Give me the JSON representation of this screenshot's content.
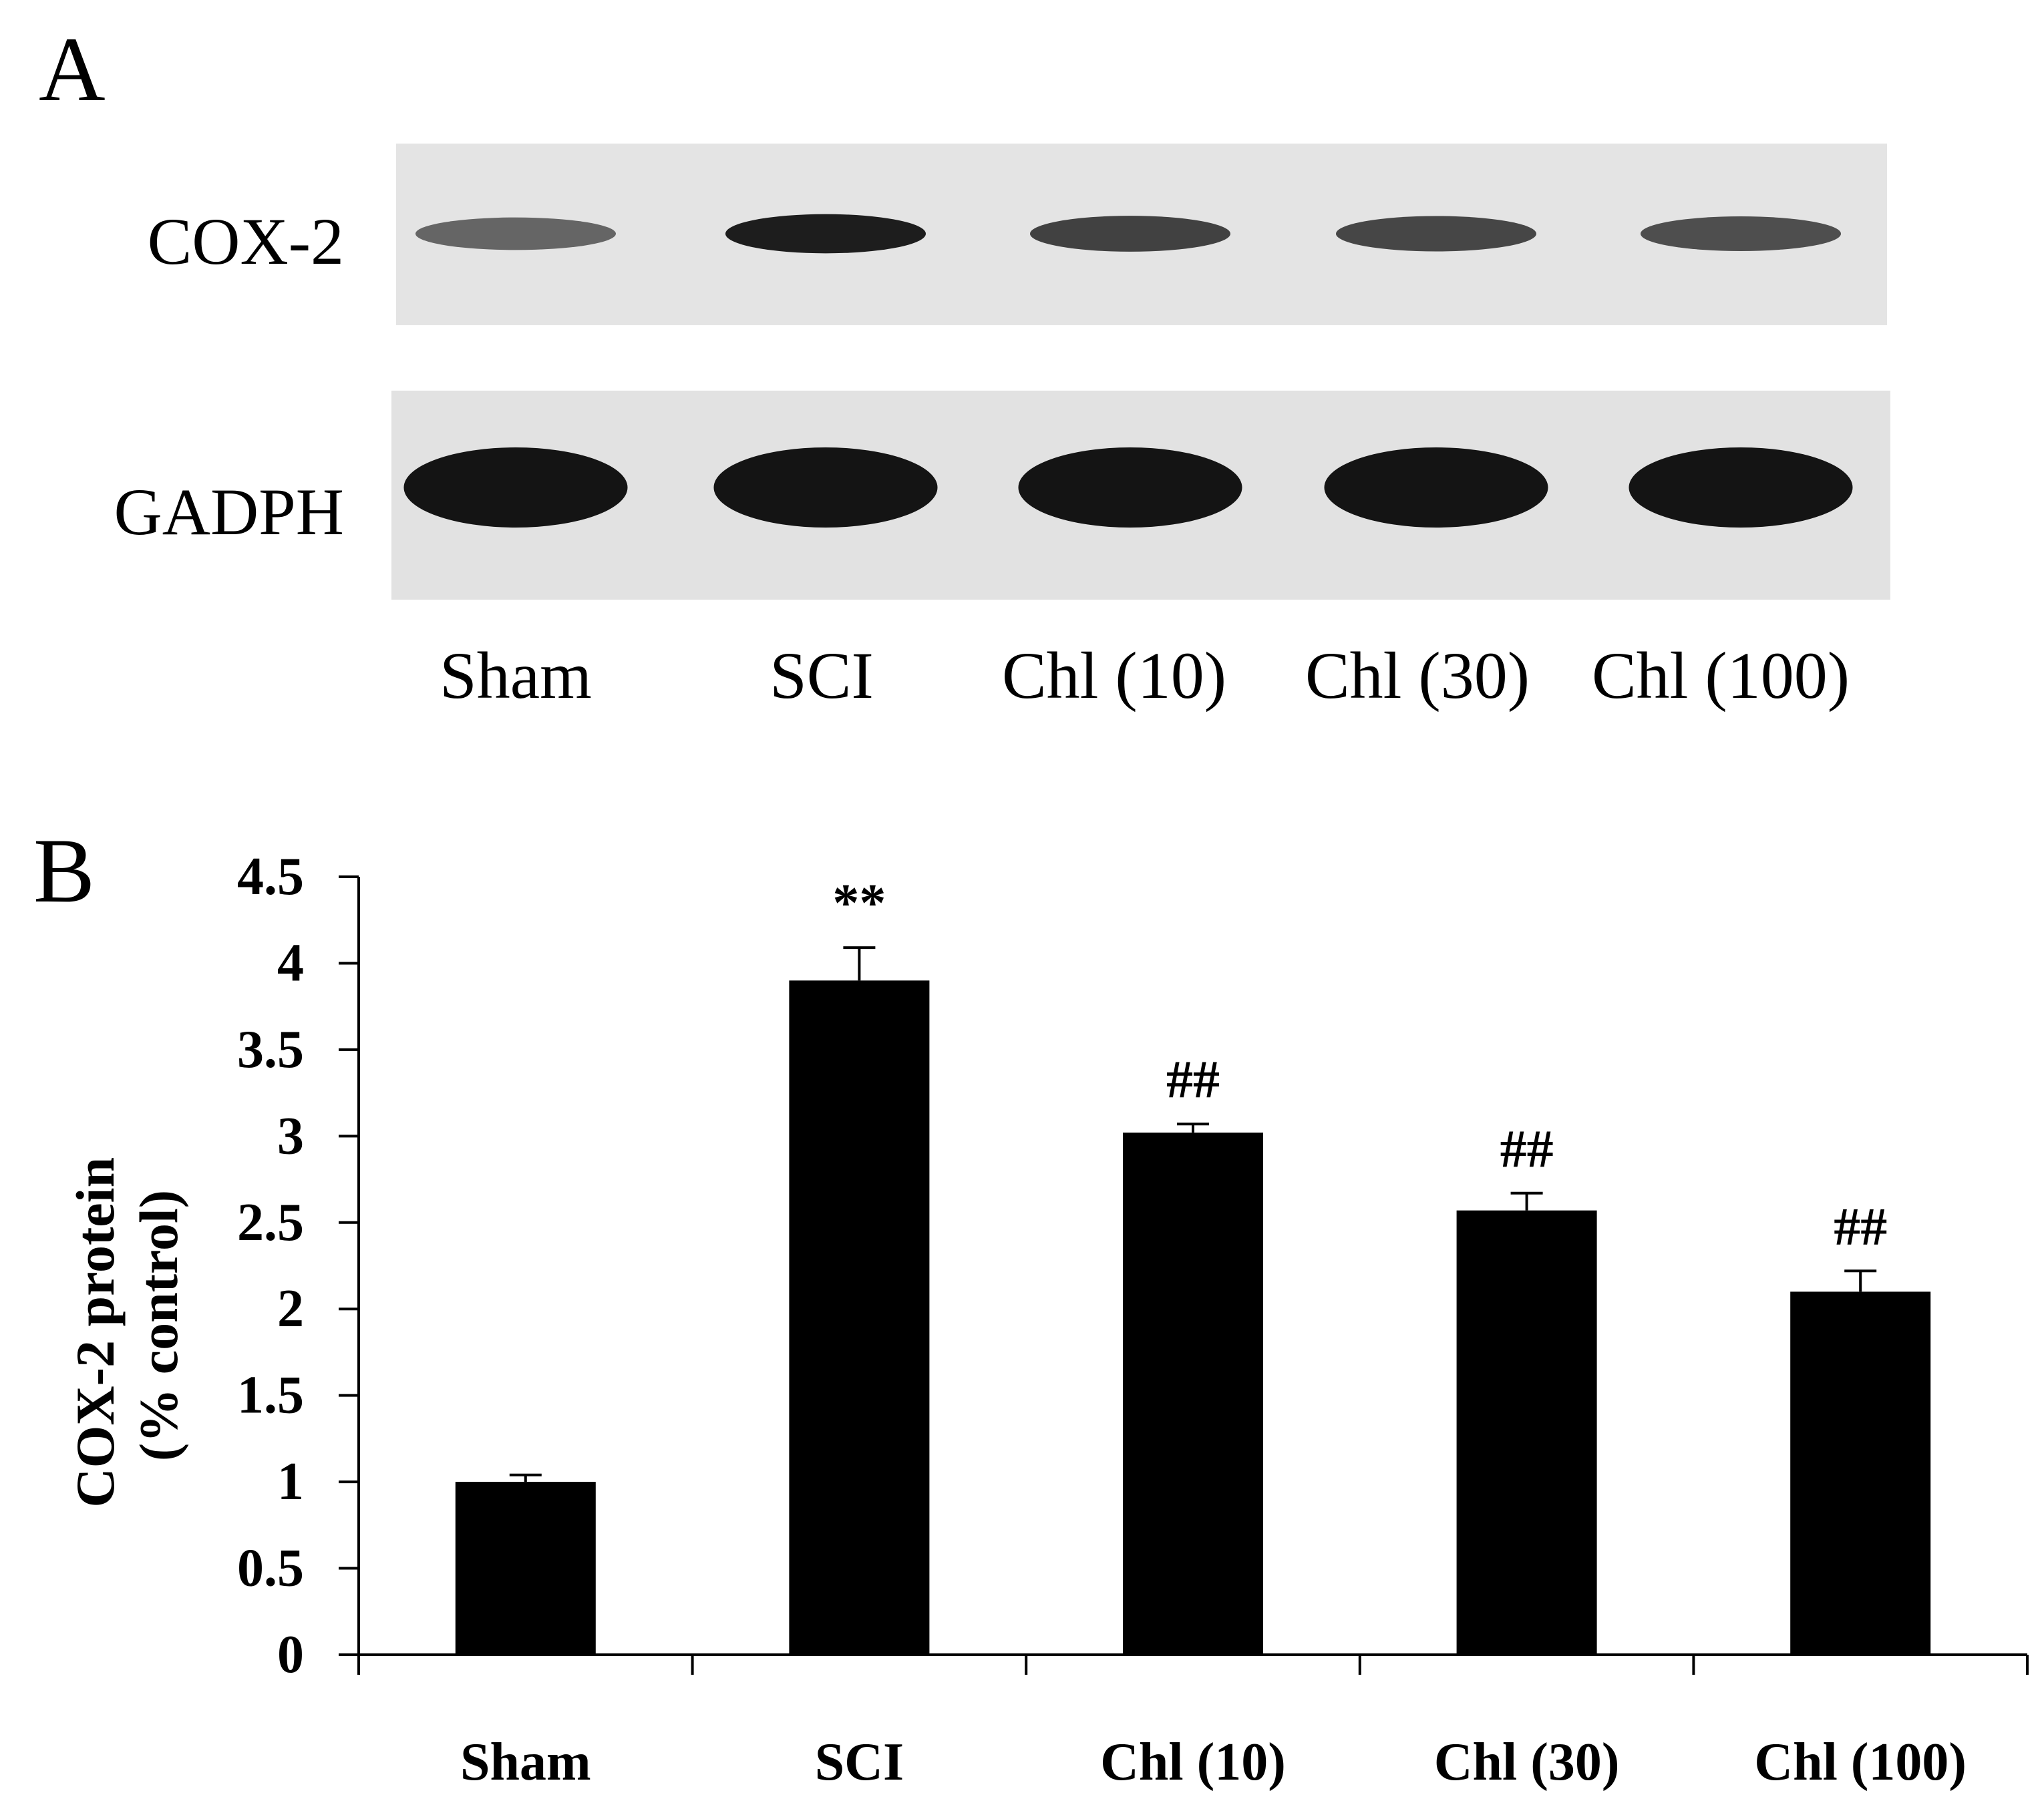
{
  "panel_a": {
    "label": "A",
    "rows": [
      {
        "name": "COX-2",
        "intensity": [
          0.55,
          0.95,
          0.75,
          0.72,
          0.68
        ]
      },
      {
        "name": "GADPH",
        "intensity": [
          1.0,
          1.0,
          1.0,
          1.0,
          1.0
        ]
      }
    ],
    "lanes": [
      "Sham",
      "SCI",
      "Chl (10)",
      "Chl (30)",
      "Chl (100)"
    ]
  },
  "panel_b": {
    "label": "B",
    "ylabel_line1": "COX-2 protein",
    "ylabel_line2": "(% control)"
  },
  "chart_data": {
    "type": "bar",
    "categories": [
      "Sham",
      "SCI",
      "Chl (10)",
      "Chl (30)",
      "Chl (100)"
    ],
    "values": [
      1.0,
      3.9,
      3.02,
      2.57,
      2.1
    ],
    "errors": [
      0.04,
      0.19,
      0.05,
      0.1,
      0.12
    ],
    "annotations": [
      "",
      "**",
      "##",
      "##",
      "##"
    ],
    "yticks": [
      "0",
      "0.5",
      "1",
      "1.5",
      "2",
      "2.5",
      "3",
      "3.5",
      "4",
      "4.5"
    ],
    "ylim": [
      0,
      4.5
    ],
    "xlabel": "",
    "ylabel": "COX-2 protein (% control)",
    "bar_color": "#000000"
  }
}
